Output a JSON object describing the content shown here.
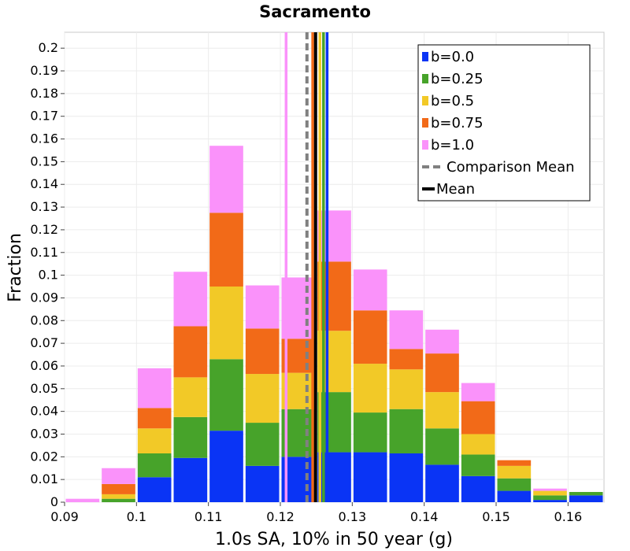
{
  "chart_data": {
    "type": "bar",
    "stacked": true,
    "title": "Sacramento",
    "xlabel": "1.0s SA, 10% in 50 year (g)",
    "ylabel": "Fraction",
    "xlim": [
      0.09,
      0.165
    ],
    "ylim": [
      0,
      0.207
    ],
    "grid": true,
    "legend_position": "top-right",
    "x_ticks": [
      "0.09",
      "0.1",
      "0.11",
      "0.12",
      "0.13",
      "0.14",
      "0.15",
      "0.16"
    ],
    "y_ticks": [
      "0",
      "0.01",
      "0.02",
      "0.03",
      "0.04",
      "0.05",
      "0.06",
      "0.07",
      "0.08",
      "0.09",
      "0.1",
      "0.11",
      "0.12",
      "0.13",
      "0.14",
      "0.15",
      "0.16",
      "0.17",
      "0.18",
      "0.19",
      "0.2"
    ],
    "bin_centers": [
      0.0925,
      0.0975,
      0.1025,
      0.1075,
      0.1125,
      0.1175,
      0.1225,
      0.1275,
      0.1325,
      0.1375,
      0.1425,
      0.1475,
      0.1525,
      0.1575,
      0.1625
    ],
    "bin_width": 0.005,
    "series": [
      {
        "name": "b=0.0",
        "color": "#0a34f5",
        "values": [
          0,
          0,
          0.011,
          0.0195,
          0.0315,
          0.016,
          0.02,
          0.022,
          0.022,
          0.0215,
          0.0165,
          0.0115,
          0.005,
          0.001,
          0.003
        ]
      },
      {
        "name": "b=0.25",
        "color": "#47a32a",
        "values": [
          0,
          0.0015,
          0.0105,
          0.018,
          0.0315,
          0.019,
          0.021,
          0.0265,
          0.0175,
          0.0195,
          0.016,
          0.0095,
          0.0055,
          0.002,
          0.0015
        ]
      },
      {
        "name": "b=0.5",
        "color": "#f2c927",
        "values": [
          0,
          0.002,
          0.011,
          0.0175,
          0.032,
          0.0215,
          0.016,
          0.027,
          0.0215,
          0.0175,
          0.016,
          0.009,
          0.0055,
          0.002,
          0
        ]
      },
      {
        "name": "b=0.75",
        "color": "#f26a18",
        "values": [
          0,
          0.0045,
          0.009,
          0.0225,
          0.0325,
          0.02,
          0.015,
          0.0305,
          0.0235,
          0.009,
          0.017,
          0.0145,
          0.0025,
          0,
          0
        ]
      },
      {
        "name": "b=1.0",
        "color": "#fa92fa",
        "values": [
          0.0015,
          0.007,
          0.0175,
          0.024,
          0.0295,
          0.019,
          0.027,
          0.0225,
          0.018,
          0.017,
          0.0105,
          0.008,
          0,
          0.001,
          0
        ]
      }
    ],
    "mean_lines": [
      {
        "series": "b=0.0",
        "color": "#0a34f5",
        "x": 0.1265
      },
      {
        "series": "b=0.25",
        "color": "#47a32a",
        "x": 0.126
      },
      {
        "series": "b=0.5",
        "color": "#f2c927",
        "x": 0.1255
      },
      {
        "series": "b=0.75",
        "color": "#f26a18",
        "x": 0.1245
      },
      {
        "series": "b=1.0",
        "color": "#fa92fa",
        "x": 0.1208
      }
    ],
    "comparison_mean": {
      "name": "Comparison Mean",
      "color": "#808080",
      "x": 0.1237
    },
    "overall_mean": {
      "name": "Mean",
      "color": "#000000",
      "x": 0.1249
    }
  }
}
